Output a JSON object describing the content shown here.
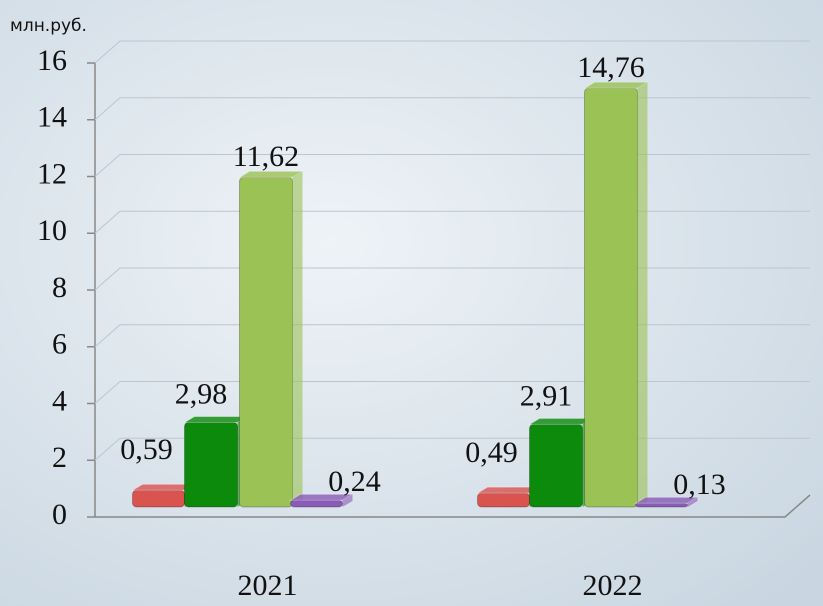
{
  "chart_data": {
    "type": "bar",
    "y_unit": "млн.руб.",
    "categories": [
      "2021",
      "2022"
    ],
    "series": [
      {
        "color": "#d9534f",
        "values": [
          0.59,
          0.49
        ],
        "value_labels": [
          "0,59",
          "0,49"
        ]
      },
      {
        "color": "#0b8a0b",
        "values": [
          2.98,
          2.91
        ],
        "value_labels": [
          "2,98",
          "2,91"
        ]
      },
      {
        "color": "#9bc255",
        "values": [
          11.62,
          14.76
        ],
        "value_labels": [
          "11,62",
          "14,76"
        ]
      },
      {
        "color": "#8a5cb8",
        "values": [
          0.24,
          0.13
        ],
        "value_labels": [
          "0,24",
          "0,13"
        ]
      }
    ],
    "ylim": [
      0,
      16
    ],
    "yticks": [
      0,
      2,
      4,
      6,
      8,
      10,
      12,
      14,
      16
    ],
    "grid": true
  }
}
